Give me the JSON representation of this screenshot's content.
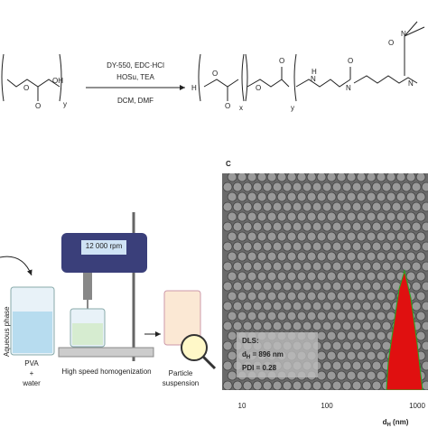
{
  "scheme": {
    "reagents": [
      "DY-550, EDC·HCl",
      "HOSu, TEA",
      "DCM, DMF"
    ],
    "left_atoms": [
      "O",
      "O",
      "OH",
      "y"
    ],
    "right_atoms": [
      "H",
      "O",
      "O",
      "O",
      "O",
      "x",
      "y",
      "H",
      "N",
      "N",
      "O",
      "N",
      "O",
      "N"
    ]
  },
  "panel_b": {
    "speed": "12 000 rpm",
    "aqueous": "Aqueous phase",
    "pva": [
      "PVA",
      "+",
      "water"
    ],
    "homogenization": "High speed homogenization",
    "particle": [
      "Particle",
      "suspension"
    ]
  },
  "panel_c": {
    "label": "C",
    "dls": {
      "title": "DLS:",
      "dh_symbol": "d",
      "dh_sub": "H",
      "dh_value": " = 896 nm",
      "pdi": "PDI = 0.28"
    },
    "xticks": [
      "10",
      "100",
      "1000"
    ],
    "xlabel_symbol": "d",
    "xlabel_sub": "H",
    "xlabel_unit": " (nm)"
  }
}
